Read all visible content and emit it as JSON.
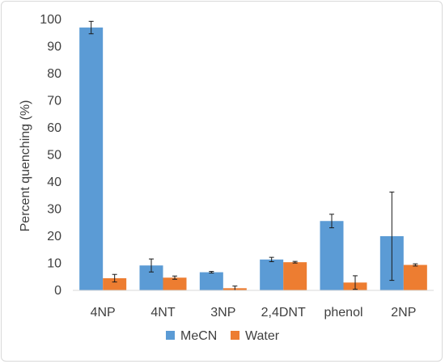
{
  "chart_data": {
    "type": "bar",
    "title": "",
    "xlabel": "",
    "ylabel": "Percent quenching (%)",
    "ylim": [
      0,
      100
    ],
    "yticks": [
      0,
      10,
      20,
      30,
      40,
      50,
      60,
      70,
      80,
      90,
      100
    ],
    "grid": false,
    "legend_position": "bottom",
    "categories": [
      "4NP",
      "4NT",
      "3NP",
      "2,4DNT",
      "phenol",
      "2NP"
    ],
    "series": [
      {
        "name": "MeCN",
        "color": "#5b9bd5",
        "values": [
          97,
          9.2,
          6.7,
          11.4,
          25.6,
          20
        ],
        "errors": [
          2.3,
          2.4,
          0.3,
          0.8,
          2.5,
          16.3
        ]
      },
      {
        "name": "Water",
        "color": "#ed7d31",
        "values": [
          4.5,
          4.7,
          0.8,
          10.4,
          2.9,
          9.4
        ],
        "errors": [
          1.4,
          0.6,
          0.8,
          0.3,
          2.5,
          0.4
        ]
      }
    ]
  }
}
